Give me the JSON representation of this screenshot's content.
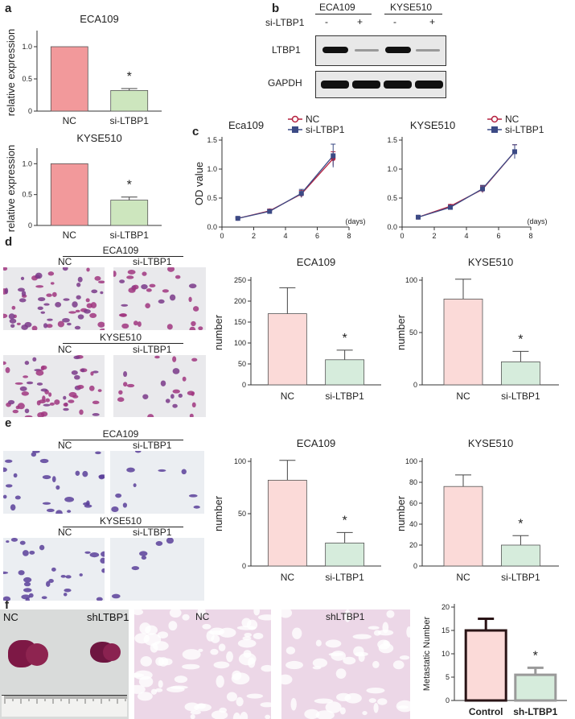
{
  "panel_letters": [
    "a",
    "b",
    "c",
    "d",
    "e",
    "f"
  ],
  "blot": {
    "cell_lines": [
      "ECA109",
      "KYSE510"
    ],
    "treatment_label": "si-LTBP1",
    "lanes": [
      "-",
      "+",
      "-",
      "+"
    ],
    "rows": [
      "LTBP1",
      "GAPDH"
    ]
  },
  "photos": {
    "d_top": {
      "title": "ECA109",
      "left": "NC",
      "right": "si-LTBP1"
    },
    "d_bottom": {
      "title": "KYSE510",
      "left": "NC",
      "right": "si-LTBP1"
    },
    "e_top": {
      "title": "ECA109",
      "left": "NC",
      "right": "si-LTBP1"
    },
    "e_bottom": {
      "title": "KYSE510",
      "left": "NC",
      "right": "si-LTBP1"
    },
    "f": {
      "gross_left": "NC",
      "gross_right": "shLTBP1",
      "histo_left": "NC",
      "histo_right": "shLTBP1"
    }
  },
  "colors": {
    "nc_fill": "#f2999b",
    "si_fill": "#cde6be",
    "nc_light": "#fbdad8",
    "si_light": "#d6ecdc",
    "line_nc": "#b5213f",
    "line_si": "#3c4a85"
  },
  "chart_data": [
    {
      "id": "a1",
      "type": "bar",
      "title": "ECA109",
      "categories": [
        "NC",
        "si-LTBP1"
      ],
      "values": [
        1.0,
        0.32
      ],
      "errors": [
        0,
        0.03
      ],
      "ylabel": "relative expression",
      "ylim": [
        0,
        1.2
      ],
      "yticks": [
        0,
        0.5,
        1.0
      ],
      "yticklabels": [
        "0",
        "0.5",
        "1.0"
      ],
      "significance": "*"
    },
    {
      "id": "a2",
      "type": "bar",
      "title": "KYSE510",
      "categories": [
        "NC",
        "si-LTBP1"
      ],
      "values": [
        1.0,
        0.41
      ],
      "errors": [
        0,
        0.05
      ],
      "ylabel": "relative expression",
      "ylim": [
        0,
        1.2
      ],
      "yticks": [
        0,
        0.5,
        1.0
      ],
      "yticklabels": [
        "0",
        "0.5",
        "1.0"
      ],
      "significance": "*"
    },
    {
      "id": "c1",
      "type": "line",
      "title": "Eca109",
      "x": [
        1,
        3,
        5,
        7
      ],
      "series": [
        {
          "name": "NC",
          "values": [
            0.15,
            0.28,
            0.57,
            1.18
          ],
          "errors": [
            0.02,
            0.03,
            0.06,
            0.12
          ]
        },
        {
          "name": "si-LTBP1",
          "values": [
            0.15,
            0.27,
            0.58,
            1.23
          ],
          "errors": [
            0.02,
            0.03,
            0.07,
            0.2
          ]
        }
      ],
      "ylabel": "OD value",
      "xlabel": "(days)",
      "xlim": [
        0,
        8
      ],
      "ylim": [
        0,
        1.5
      ],
      "xticks": [
        0,
        2,
        4,
        6,
        8
      ],
      "yticks": [
        0,
        0.5,
        1.0,
        1.5
      ],
      "yticklabels": [
        "0.0",
        "0.5",
        "1.0",
        "1.5"
      ],
      "legend": "top-left"
    },
    {
      "id": "c2",
      "type": "line",
      "title": "KYSE510",
      "x": [
        1,
        3,
        5,
        7
      ],
      "series": [
        {
          "name": "NC",
          "values": [
            0.17,
            0.36,
            0.65,
            1.3
          ],
          "errors": [
            0.02,
            0.03,
            0.06,
            0.12
          ]
        },
        {
          "name": "si-LTBP1",
          "values": [
            0.17,
            0.34,
            0.66,
            1.3
          ],
          "errors": [
            0.02,
            0.03,
            0.06,
            0.12
          ]
        }
      ],
      "ylabel": "",
      "xlabel": "(days)",
      "xlim": [
        0,
        8
      ],
      "ylim": [
        0,
        1.5
      ],
      "xticks": [
        0,
        2,
        4,
        6,
        8
      ],
      "yticks": [
        0,
        0.5,
        1.0,
        1.5
      ],
      "yticklabels": [
        "0.0",
        "0.5",
        "1.0",
        "1.5"
      ],
      "legend": "top-left"
    },
    {
      "id": "d1",
      "type": "bar",
      "title": "ECA109",
      "categories": [
        "NC",
        "si-LTBP1"
      ],
      "values": [
        170,
        60
      ],
      "errors": [
        62,
        23
      ],
      "ylabel": "number",
      "ylim": [
        0,
        250
      ],
      "yticks": [
        0,
        50,
        100,
        150,
        200,
        250
      ],
      "yticklabels": [
        "0",
        "50",
        "100",
        "150",
        "200",
        "250"
      ],
      "significance": "*"
    },
    {
      "id": "d2",
      "type": "bar",
      "title": "KYSE510",
      "categories": [
        "NC",
        "si-LTBP1"
      ],
      "values": [
        82,
        22
      ],
      "errors": [
        19,
        10
      ],
      "ylabel": "number",
      "ylim": [
        0,
        100
      ],
      "yticks": [
        0,
        50,
        100
      ],
      "yticklabels": [
        "0",
        "50",
        "100"
      ],
      "significance": "*"
    },
    {
      "id": "e1",
      "type": "bar",
      "title": "ECA109",
      "categories": [
        "NC",
        "si-LTBP1"
      ],
      "values": [
        82,
        22
      ],
      "errors": [
        19,
        10
      ],
      "ylabel": "number",
      "ylim": [
        0,
        100
      ],
      "yticks": [
        0,
        50,
        100
      ],
      "yticklabels": [
        "0",
        "50",
        "100"
      ],
      "significance": "*"
    },
    {
      "id": "e2",
      "type": "bar",
      "title": "KYSE510",
      "categories": [
        "NC",
        "si-LTBP1"
      ],
      "values": [
        76,
        20
      ],
      "errors": [
        11,
        9
      ],
      "ylabel": "number",
      "ylim": [
        0,
        100
      ],
      "yticks": [
        0,
        20,
        40,
        60,
        80,
        100
      ],
      "yticklabels": [
        "0",
        "20",
        "40",
        "60",
        "80",
        "100"
      ],
      "significance": "*"
    },
    {
      "id": "f1",
      "type": "bar",
      "title": "",
      "categories": [
        "Control",
        "sh-LTBP1"
      ],
      "values": [
        15,
        5.5
      ],
      "errors": [
        2.5,
        1.5
      ],
      "ylabel": "Metastatic Number",
      "ylim": [
        0,
        20
      ],
      "yticks": [
        0,
        5,
        10,
        15,
        20
      ],
      "yticklabels": [
        "0",
        "5",
        "10",
        "15",
        "20"
      ],
      "significance": "*"
    }
  ]
}
